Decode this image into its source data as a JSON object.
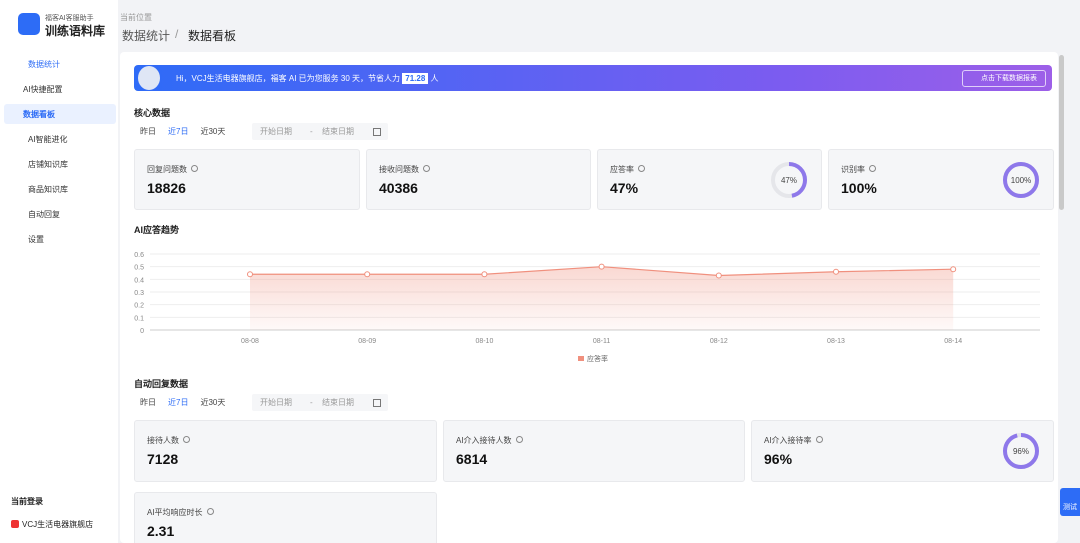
{
  "logo": {
    "subtitle": "福客AI客服助手",
    "title": "训练语料库"
  },
  "sidebar": {
    "menu": [
      "数据统计",
      "AI快捷配置",
      "数据看板",
      "AI智能进化",
      "店铺知识库",
      "商品知识库",
      "自动回复",
      "设置"
    ],
    "login_label": "当前登录",
    "store": "VCJ生活电器旗舰店"
  },
  "breadcrumb": {
    "label": "当前位置",
    "items": [
      "数据统计",
      "数据看板"
    ],
    "separator": "/"
  },
  "banner": {
    "text": "Hi，VCJ生活电器旗舰店，福客 AI 已为您服务 30 天，节省人力",
    "value": "71.28",
    "unit": "人",
    "button": "点击下载数据报表"
  },
  "core": {
    "title": "核心数据",
    "filters": [
      "昨日",
      "近7日",
      "近30天"
    ],
    "start": "开始日期",
    "sep": "-",
    "end": "结束日期",
    "cards": [
      {
        "label": "回复问题数",
        "value": "18826"
      },
      {
        "label": "接收问题数",
        "value": "40386"
      },
      {
        "label": "应答率",
        "value": 47,
        "value_label": "47%"
      },
      {
        "label": "识别率",
        "value": 100,
        "value_label": "100%"
      }
    ]
  },
  "trend": {
    "title": "AI应答趋势",
    "chart_data": {
      "type": "line",
      "categories": [
        "08-08",
        "08-09",
        "08-10",
        "08-11",
        "08-12",
        "08-13",
        "08-14"
      ],
      "series": [
        {
          "name": "应答率",
          "color": "#f0907e",
          "values": [
            0.44,
            0.44,
            0.44,
            0.5,
            0.43,
            0.46,
            0.48
          ]
        }
      ],
      "ylim": [
        0,
        0.6
      ],
      "yticks": [
        0,
        0.1,
        0.2,
        0.3,
        0.4,
        0.5,
        0.6
      ],
      "grid": true
    }
  },
  "auto": {
    "title": "自动回复数据",
    "filters": [
      "昨日",
      "近7日",
      "近30天"
    ],
    "start": "开始日期",
    "sep": "-",
    "end": "结束日期",
    "cards": [
      {
        "label": "接待人数",
        "value": "7128"
      },
      {
        "label": "AI介入接待人数",
        "value": "6814"
      },
      {
        "label": "AI介入接待率",
        "value": 96,
        "value_label": "96%"
      },
      {
        "label": "AI平均响应时长",
        "value": "2.31"
      }
    ]
  },
  "test_button": "测试"
}
